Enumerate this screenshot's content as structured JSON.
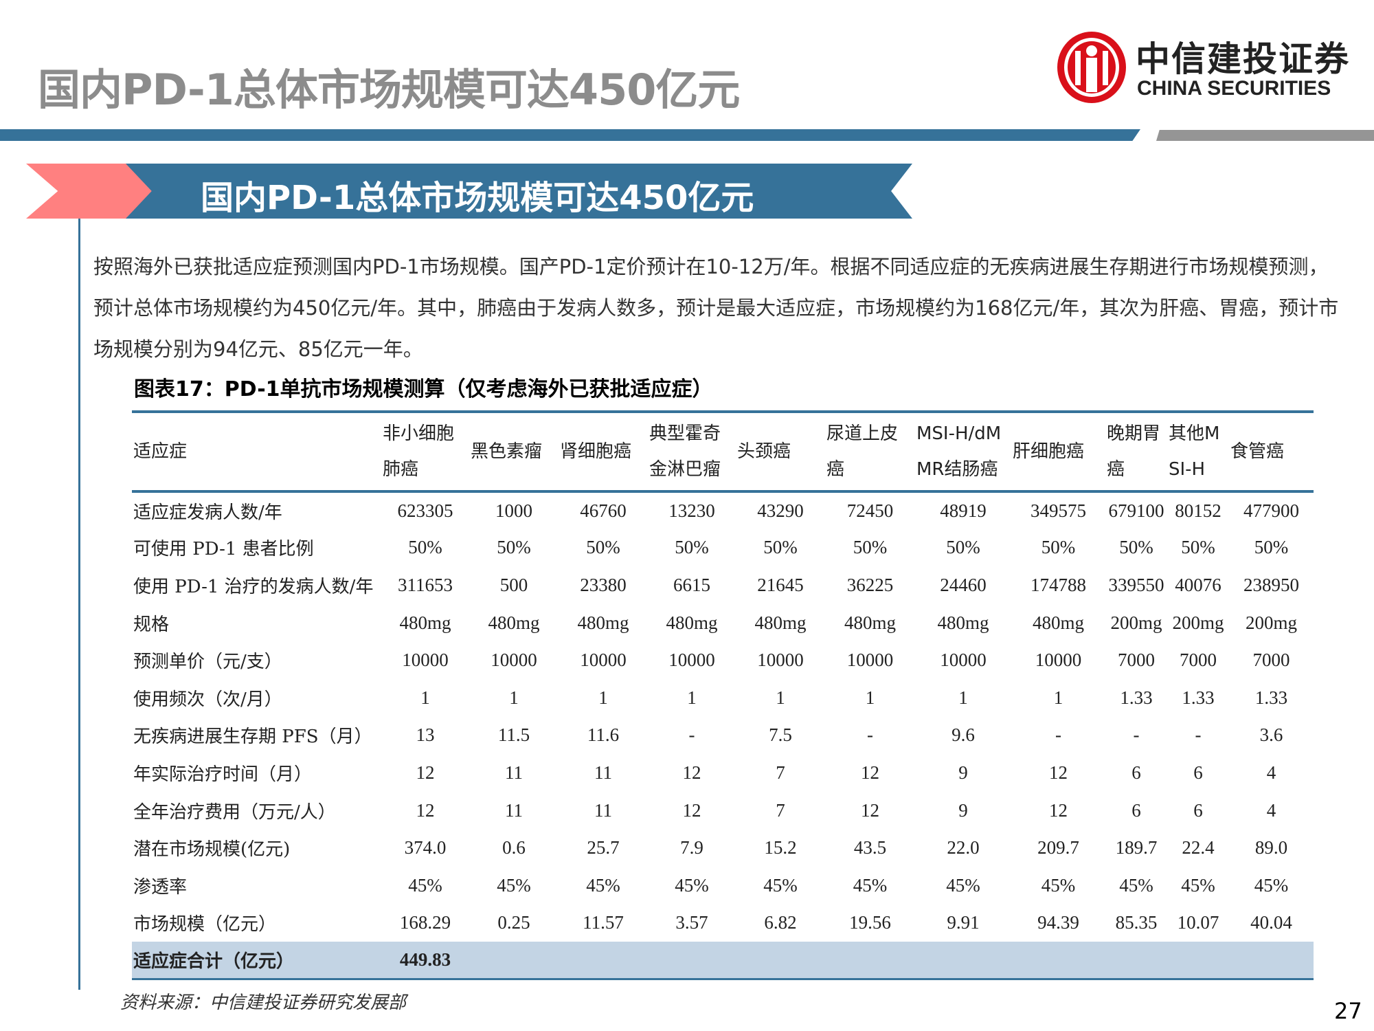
{
  "page_title": "国内PD-1总体市场规模可达450亿元",
  "logo": {
    "cn": "中信建投证券",
    "en": "CHINA SECURITIES",
    "color": "#d9101a"
  },
  "banner_title": "国内PD-1总体市场规模可达450亿元",
  "paragraph": "按照海外已获批适应症预测国内PD-1市场规模。国产PD-1定价预计在10-12万/年。根据不同适应症的无疾病进展生存期进行市场规模预测，预计总体市场规模约为450亿元/年。其中，肺癌由于发病人数多，预计是最大适应症，市场规模约为168亿元/年，其次为肝癌、胃癌，预计市场规模分别为94亿元、85亿元一年。",
  "figure_caption": "图表17：PD-1单抗市场规模测算（仅考虑海外已获批适应症）",
  "table": {
    "headers": [
      "适应症",
      "非小细胞肺癌",
      "黑色素瘤",
      "肾细胞癌",
      "典型霍奇金淋巴瘤",
      "头颈癌",
      "尿道上皮癌",
      "MSI-H/dMMR结肠癌",
      "肝细胞癌",
      "晚期胃癌",
      "其他MSI-H",
      "食管癌"
    ],
    "rows": [
      [
        "适应症发病人数/年",
        "623305",
        "1000",
        "46760",
        "13230",
        "43290",
        "72450",
        "48919",
        "349575",
        "679100",
        "80152",
        "477900"
      ],
      [
        "可使用 PD-1 患者比例",
        "50%",
        "50%",
        "50%",
        "50%",
        "50%",
        "50%",
        "50%",
        "50%",
        "50%",
        "50%",
        "50%"
      ],
      [
        "使用 PD-1 治疗的发病人数/年",
        "311653",
        "500",
        "23380",
        "6615",
        "21645",
        "36225",
        "24460",
        "174788",
        "339550",
        "40076",
        "238950"
      ],
      [
        "规格",
        "480mg",
        "480mg",
        "480mg",
        "480mg",
        "480mg",
        "480mg",
        "480mg",
        "480mg",
        "200mg",
        "200mg",
        "200mg"
      ],
      [
        "预测单价（元/支）",
        "10000",
        "10000",
        "10000",
        "10000",
        "10000",
        "10000",
        "10000",
        "10000",
        "7000",
        "7000",
        "7000"
      ],
      [
        "使用频次（次/月）",
        "1",
        "1",
        "1",
        "1",
        "1",
        "1",
        "1",
        "1",
        "1.33",
        "1.33",
        "1.33"
      ],
      [
        "无疾病进展生存期 PFS（月）",
        "13",
        "11.5",
        "11.6",
        "-",
        "7.5",
        "-",
        "9.6",
        "-",
        "-",
        "-",
        "3.6"
      ],
      [
        "年实际治疗时间（月）",
        "12",
        "11",
        "11",
        "12",
        "7",
        "12",
        "9",
        "12",
        "6",
        "6",
        "4"
      ],
      [
        "全年治疗费用（万元/人）",
        "12",
        "11",
        "11",
        "12",
        "7",
        "12",
        "9",
        "12",
        "6",
        "6",
        "4"
      ],
      [
        "潜在市场规模(亿元)",
        "374.0",
        "0.6",
        "25.7",
        "7.9",
        "15.2",
        "43.5",
        "22.0",
        "209.7",
        "189.7",
        "22.4",
        "89.0"
      ],
      [
        "渗透率",
        "45%",
        "45%",
        "45%",
        "45%",
        "45%",
        "45%",
        "45%",
        "45%",
        "45%",
        "45%",
        "45%"
      ],
      [
        "市场规模（亿元）",
        "168.29",
        "0.25",
        "11.57",
        "3.57",
        "6.82",
        "19.56",
        "9.91",
        "94.39",
        "85.35",
        "10.07",
        "40.04"
      ]
    ],
    "total": {
      "label": "适应症合计（亿元）",
      "value": "449.83"
    }
  },
  "source": "资料来源：中信建投证券研究发展部",
  "page_number": "27",
  "colors": {
    "accent_blue": "#367299",
    "accent_pink": "#ff8080",
    "title_gray": "#8c8c8c",
    "total_row": "#c3d4e4"
  }
}
